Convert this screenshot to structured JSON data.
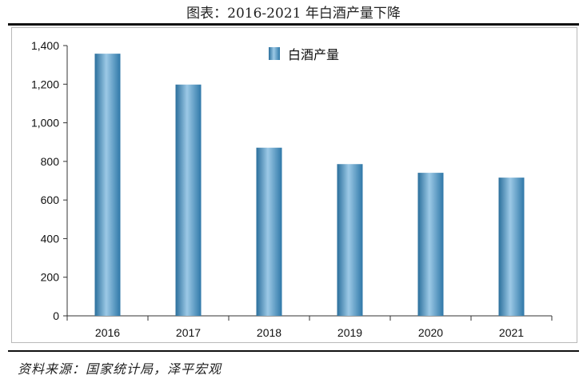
{
  "header": {
    "title": "图表：2016-2021 年白酒产量下降"
  },
  "footer": {
    "source": "资料来源：国家统计局，泽平宏观"
  },
  "colors": {
    "bar_dark": "#2a6f9c",
    "bar_light": "#8fc1e0",
    "axis": "#333333"
  },
  "chart_data": {
    "type": "bar",
    "title": "图表：2016-2021 年白酒产量下降",
    "xlabel": "",
    "ylabel": "",
    "categories": [
      "2016",
      "2017",
      "2018",
      "2019",
      "2020",
      "2021"
    ],
    "series": [
      {
        "name": "白酒产量",
        "values": [
          1358,
          1198,
          871,
          786,
          741,
          716
        ]
      }
    ],
    "ylim": [
      0,
      1400
    ],
    "yticks": [
      "0",
      "200",
      "400",
      "600",
      "800",
      "1,000",
      "1,200",
      "1,400"
    ],
    "ytick_values": [
      0,
      200,
      400,
      600,
      800,
      1000,
      1200,
      1400
    ],
    "grid": false,
    "legend": "top-center"
  }
}
